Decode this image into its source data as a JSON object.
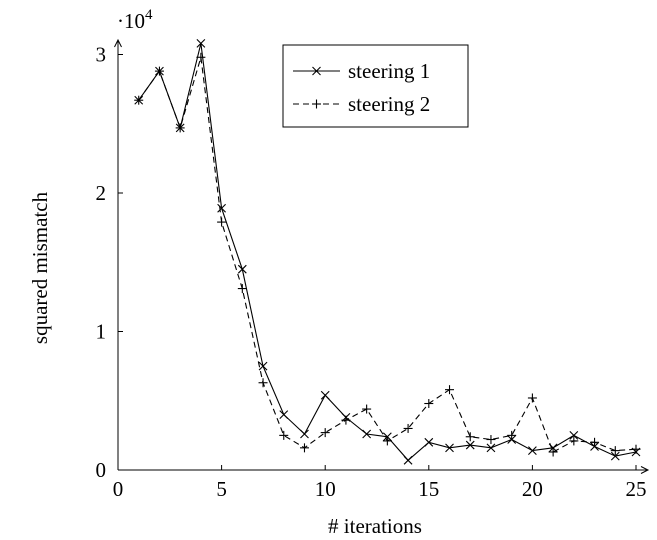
{
  "chart_data": {
    "type": "line",
    "title": "",
    "xlabel": "# iterations",
    "ylabel": "squared mismatch",
    "y_scale_label": "·10",
    "y_scale_exp": "4",
    "xlim": [
      0,
      25
    ],
    "ylim": [
      0,
      3.1
    ],
    "x_ticks": [
      0,
      5,
      10,
      15,
      20,
      25
    ],
    "y_ticks": [
      0,
      1,
      2,
      3
    ],
    "grid": false,
    "legend_position": "top-right",
    "series": [
      {
        "name": "steering 1",
        "line_style": "solid",
        "marker": "x",
        "color": "#000000",
        "x": [
          1,
          2,
          3,
          4,
          5,
          6,
          7,
          8,
          9,
          10,
          11,
          12,
          13,
          14,
          15,
          16,
          17,
          18,
          19,
          20,
          21,
          22,
          23,
          24,
          25
        ],
        "y": [
          2.67,
          2.88,
          2.47,
          3.08,
          1.89,
          1.45,
          0.75,
          0.4,
          0.26,
          0.54,
          0.38,
          0.26,
          0.24,
          0.07,
          0.2,
          0.16,
          0.18,
          0.16,
          0.22,
          0.14,
          0.16,
          0.25,
          0.17,
          0.1,
          0.13
        ]
      },
      {
        "name": "steering 2",
        "line_style": "dashed",
        "marker": "+",
        "color": "#000000",
        "x": [
          1,
          2,
          3,
          4,
          5,
          6,
          7,
          8,
          9,
          10,
          11,
          12,
          13,
          14,
          15,
          16,
          17,
          18,
          19,
          20,
          21,
          22,
          23,
          24,
          25
        ],
        "y": [
          2.67,
          2.88,
          2.47,
          2.98,
          1.79,
          1.31,
          0.63,
          0.25,
          0.16,
          0.27,
          0.36,
          0.44,
          0.21,
          0.3,
          0.48,
          0.58,
          0.24,
          0.22,
          0.25,
          0.52,
          0.13,
          0.21,
          0.2,
          0.14,
          0.15
        ]
      }
    ]
  }
}
